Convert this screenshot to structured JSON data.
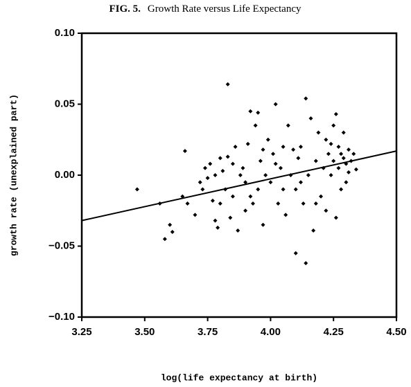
{
  "chart_data": {
    "type": "scatter",
    "figure_label": "FIG. 5.",
    "title": "Growth Rate versus Life Expectancy",
    "x_label": "log(life expectancy at birth)",
    "y_label": "growth rate (unexplained part)",
    "color": "#000000",
    "xlim": [
      3.25,
      4.5
    ],
    "ylim": [
      -0.1,
      0.1
    ],
    "xticks": [
      3.25,
      {
        "value": 3.5,
        "label": "3.50"
      },
      3.75,
      {
        "value": 4,
        "label": "4.00"
      },
      4.25,
      {
        "value": 4.5,
        "label": "4.50"
      }
    ],
    "yticks": [
      {
        "value": -0.1,
        "label": "−0.10"
      },
      {
        "value": -0.05,
        "label": "−0.05"
      },
      {
        "value": 0,
        "label": "0.00"
      },
      0.05,
      {
        "value": 0.1,
        "label": "0.10"
      }
    ],
    "x": [
      3.47,
      3.56,
      3.58,
      3.6,
      3.61,
      3.65,
      3.66,
      3.67,
      3.7,
      3.72,
      3.73,
      3.74,
      3.75,
      3.76,
      3.77,
      3.78,
      3.79,
      3.8,
      3.8,
      3.81,
      3.82,
      3.83,
      3.83,
      3.84,
      3.85,
      3.86,
      3.87,
      3.88,
      3.89,
      3.9,
      3.91,
      3.92,
      3.93,
      3.94,
      3.95,
      3.95,
      3.96,
      3.97,
      3.98,
      3.99,
      4.0,
      4.01,
      4.02,
      4.03,
      4.04,
      4.05,
      4.06,
      4.07,
      4.08,
      4.09,
      4.1,
      4.1,
      4.11,
      4.12,
      4.13,
      4.14,
      4.14,
      4.15,
      4.16,
      4.17,
      4.18,
      4.19,
      4.2,
      4.21,
      4.22,
      4.22,
      4.23,
      4.24,
      4.25,
      4.25,
      4.26,
      4.26,
      4.27,
      4.27,
      4.28,
      4.28,
      4.29,
      4.29,
      4.3,
      4.3,
      4.31,
      4.31,
      4.32,
      4.33,
      4.34,
      3.9,
      3.85,
      4.05,
      3.97,
      4.12,
      4.18,
      4.02,
      3.92,
      3.78,
      4.24
    ],
    "y": [
      -0.01,
      -0.02,
      -0.045,
      -0.035,
      -0.04,
      -0.015,
      0.017,
      -0.02,
      -0.028,
      -0.005,
      -0.01,
      0.005,
      -0.002,
      0.008,
      -0.018,
      -0.032,
      -0.037,
      0.012,
      -0.02,
      0.003,
      -0.01,
      0.064,
      0.013,
      -0.03,
      -0.015,
      0.02,
      -0.039,
      0.0,
      0.005,
      -0.025,
      0.022,
      0.045,
      -0.02,
      0.035,
      0.044,
      -0.01,
      0.01,
      -0.035,
      0.0,
      0.025,
      -0.005,
      0.015,
      0.05,
      -0.02,
      0.005,
      0.02,
      -0.028,
      0.035,
      0.0,
      0.018,
      -0.055,
      -0.01,
      0.012,
      0.02,
      -0.02,
      0.054,
      -0.062,
      0.0,
      0.04,
      -0.039,
      0.01,
      0.03,
      -0.015,
      0.005,
      0.025,
      -0.025,
      0.015,
      0.0,
      0.035,
      0.01,
      -0.03,
      0.043,
      0.02,
      0.005,
      0.015,
      -0.01,
      0.03,
      0.012,
      0.008,
      -0.005,
      0.018,
      0.002,
      0.01,
      0.015,
      0.004,
      -0.005,
      0.008,
      -0.01,
      0.018,
      -0.005,
      -0.02,
      0.008,
      -0.015,
      0.0,
      0.022
    ],
    "fit_line": {
      "x": [
        3.25,
        4.5
      ],
      "y": [
        -0.032,
        0.017
      ]
    }
  }
}
